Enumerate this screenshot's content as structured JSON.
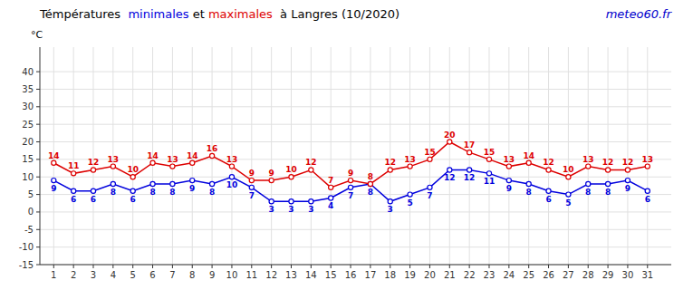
{
  "chart_data": {
    "type": "line",
    "title": "Témpératures  minimales et maximales  à Langres (10/2020)",
    "y_label": "°C",
    "annotations": [
      {
        "text": "meteo60.fr",
        "color": "#0000cc"
      }
    ],
    "x": [
      1,
      2,
      3,
      4,
      5,
      6,
      7,
      8,
      9,
      10,
      11,
      12,
      13,
      14,
      15,
      16,
      17,
      18,
      19,
      20,
      21,
      22,
      23,
      24,
      25,
      26,
      27,
      28,
      29,
      30,
      31
    ],
    "series": [
      {
        "name": "minimales",
        "color": "#0000dd",
        "marker": "circle",
        "values": [
          9,
          6,
          6,
          8,
          6,
          8,
          8,
          9,
          8,
          10,
          7,
          3,
          3,
          3,
          4,
          7,
          8,
          3,
          5,
          7,
          12,
          12,
          11,
          9,
          8,
          6,
          5,
          8,
          8,
          9,
          6
        ]
      },
      {
        "name": "maximales",
        "color": "#dd0000",
        "marker": "circle",
        "values": [
          14,
          11,
          12,
          13,
          10,
          14,
          13,
          14,
          16,
          13,
          9,
          9,
          10,
          12,
          7,
          9,
          8,
          12,
          13,
          15,
          20,
          17,
          15,
          13,
          14,
          12,
          10,
          13,
          12,
          12,
          13
        ]
      }
    ],
    "xlim": [
      0.3,
      32.2
    ],
    "xticks": [
      1,
      2,
      3,
      4,
      5,
      6,
      7,
      8,
      9,
      10,
      11,
      12,
      13,
      14,
      15,
      16,
      17,
      18,
      19,
      20,
      21,
      22,
      23,
      24,
      25,
      26,
      27,
      28,
      29,
      30,
      31
    ],
    "ylim": [
      -15,
      47
    ],
    "yticks": [
      -15,
      -10,
      -5,
      0,
      5,
      10,
      15,
      20,
      25,
      30,
      35,
      40
    ],
    "grid": true,
    "data_labels": true
  }
}
